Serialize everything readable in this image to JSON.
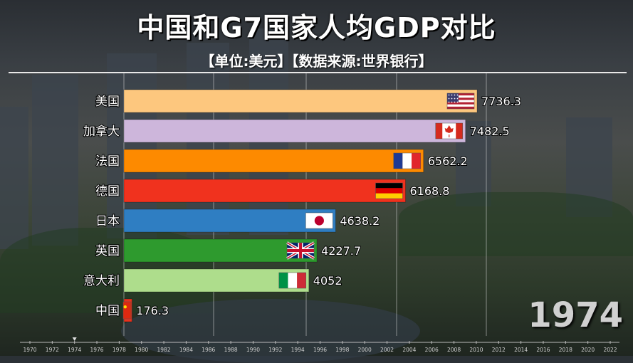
{
  "header": {
    "title": "中国和G7国家人均GDP对比",
    "subtitle": "【单位:美元】【数据来源:世界银行】"
  },
  "current_year": "1974",
  "colors": {
    "美国": "#fdc77e",
    "加拿大": "#cdb6db",
    "法国": "#fd8a00",
    "德国": "#f0321e",
    "日本": "#2f7ec2",
    "英国": "#2e9a2e",
    "意大利": "#aedd8c",
    "中国": "#e8321e"
  },
  "chart_data": {
    "type": "bar",
    "orientation": "horizontal",
    "title": "中国和G7国家人均GDP对比",
    "subtitle": "【单位:美元】【数据来源:世界银行】",
    "categories": [
      "美国",
      "加拿大",
      "法国",
      "德国",
      "日本",
      "英国",
      "意大利",
      "中国"
    ],
    "values": [
      7736.3,
      7482.5,
      6562.2,
      6168.8,
      4638.2,
      4227.7,
      4052,
      176.3
    ],
    "value_labels": [
      "7736.3",
      "7482.5",
      "6562.2",
      "6168.8",
      "4638.2",
      "4227.7",
      "4052",
      "176.3"
    ],
    "flags": [
      "us-flag",
      "canada-flag",
      "france-flag",
      "germany-flag",
      "japan-flag",
      "uk-flag",
      "italy-flag",
      "china-flag"
    ],
    "xlim": [
      0,
      8000
    ],
    "grid": true,
    "timeline": {
      "ticks": [
        "1970",
        "1972",
        "1974",
        "1976",
        "1978",
        "1980",
        "1982",
        "1984",
        "1986",
        "1988",
        "1990",
        "1992",
        "1994",
        "1996",
        "1998",
        "2000",
        "2002",
        "2004",
        "2006",
        "2008",
        "2010",
        "2012",
        "2014",
        "2016",
        "2018",
        "2020",
        "2022"
      ],
      "current": "1974"
    }
  }
}
